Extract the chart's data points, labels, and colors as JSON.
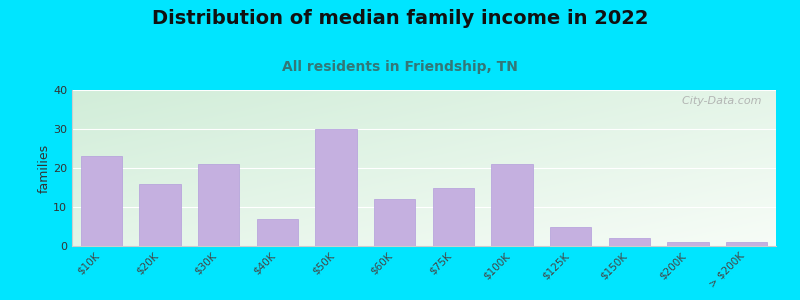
{
  "title": "Distribution of median family income in 2022",
  "subtitle": "All residents in Friendship, TN",
  "ylabel": "families",
  "categories": [
    "$10K",
    "$20K",
    "$30K",
    "$40K",
    "$50K",
    "$60K",
    "$75K",
    "$100K",
    "$125K",
    "$150K",
    "$200K",
    "> $200K"
  ],
  "values": [
    23,
    16,
    21,
    7,
    30,
    12,
    15,
    21,
    5,
    2,
    1,
    1
  ],
  "bar_color": "#c5b0e0",
  "bar_edge_color": "#b39ddb",
  "ylim": [
    0,
    40
  ],
  "yticks": [
    0,
    10,
    20,
    30,
    40
  ],
  "background_outer": "#00e5ff",
  "bg_color_topleft": "#d4edda",
  "bg_color_topright": "#e8f5e9",
  "bg_color_bottomleft": "#eaf4ec",
  "bg_color_bottomright": "#f8fdf8",
  "grid_color": "#ffffff",
  "watermark": "  City-Data.com",
  "title_fontsize": 14,
  "subtitle_fontsize": 10,
  "ylabel_fontsize": 9
}
